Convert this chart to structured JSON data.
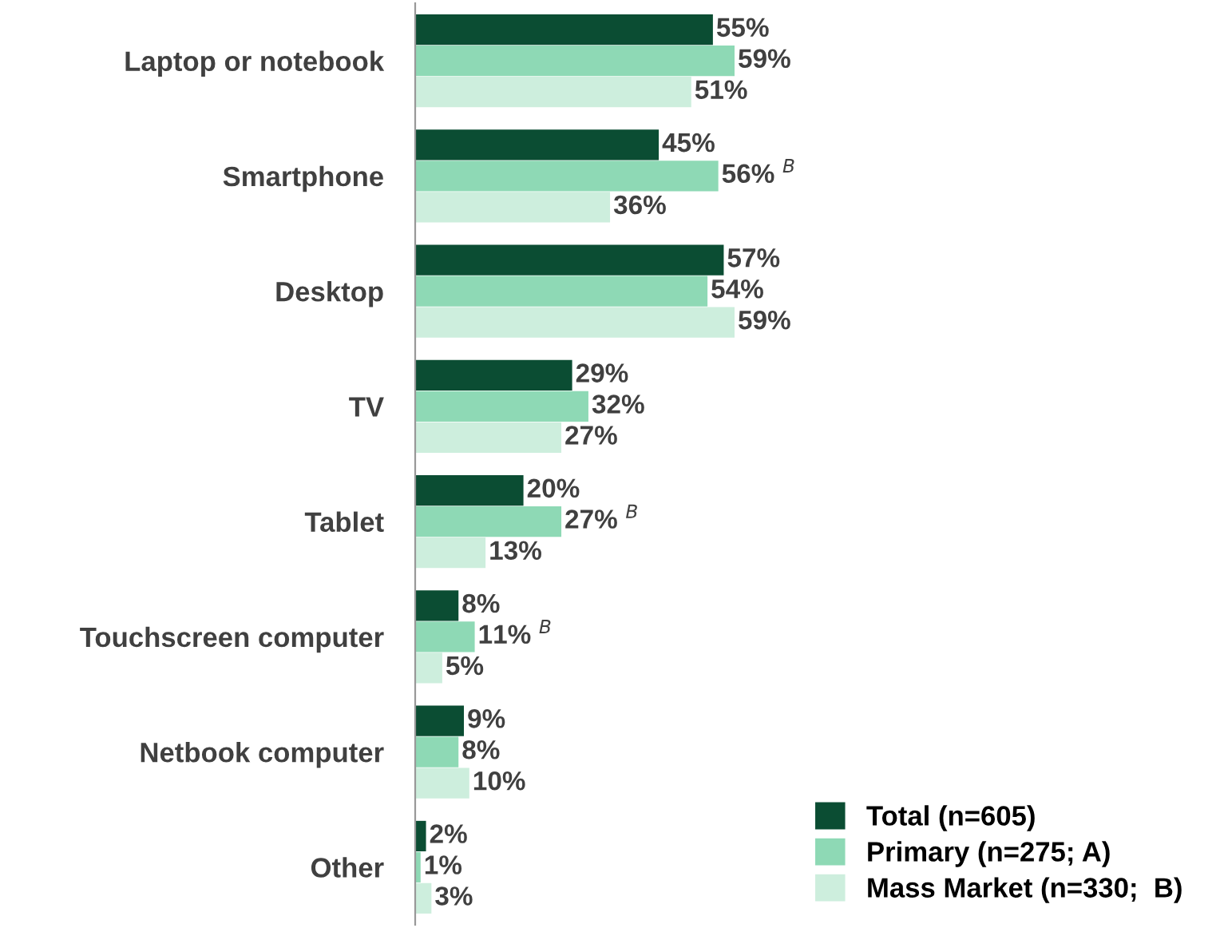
{
  "chart_data": {
    "type": "bar",
    "orientation": "horizontal",
    "categories": [
      "Laptop or notebook",
      "Smartphone",
      "Desktop",
      "TV",
      "Tablet",
      "Touchscreen computer",
      "Netbook computer",
      "Other"
    ],
    "series": [
      {
        "name": "Total (n=605)",
        "color": "#0b4d33",
        "values": [
          55,
          45,
          57,
          29,
          20,
          8,
          9,
          2
        ],
        "value_labels": [
          "55%",
          "45%",
          "57%",
          "29%",
          "20%",
          "8%",
          "9%",
          "2%"
        ]
      },
      {
        "name": "Primary (n=275; A)",
        "color": "#8ed9b5",
        "values": [
          59,
          56,
          54,
          32,
          27,
          11,
          8,
          1
        ],
        "value_labels": [
          "59%",
          "56% $^{B}$",
          "54%",
          "32%",
          "27% $^{B}$",
          "11% $^{B}$",
          "8%",
          "1%"
        ]
      },
      {
        "name": "Mass Market (n=330;  B)",
        "color": "#cdeedd",
        "values": [
          51,
          36,
          59,
          27,
          13,
          5,
          10,
          3
        ],
        "value_labels": [
          "51%",
          "36%",
          "59%",
          "27%",
          "13%",
          "5%",
          "10%",
          "3%"
        ]
      }
    ],
    "legend": "bottom right"
  }
}
